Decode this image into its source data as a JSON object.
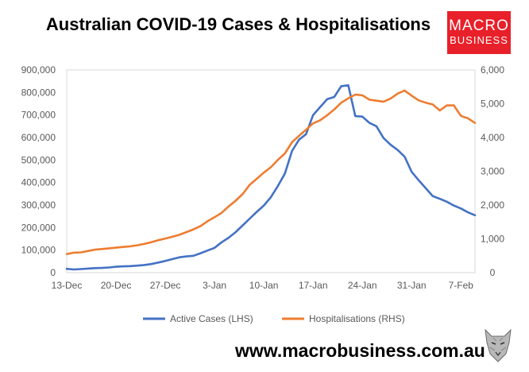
{
  "header": {
    "title": "Australian COVID-19 Cases & Hospitalisations"
  },
  "logo": {
    "line1": "MACRO",
    "line2": "BUSINESS",
    "bg_color": "#e8202a"
  },
  "footer": {
    "website": "www.macrobusiness.com.au"
  },
  "chart_data": {
    "type": "line",
    "title": "Australian COVID-19 Cases & Hospitalisations",
    "categories": [
      "13-Dec",
      "20-Dec",
      "27-Dec",
      "3-Jan",
      "10-Jan",
      "17-Jan",
      "24-Jan",
      "31-Jan",
      "7-Feb"
    ],
    "x_range_days": [
      0,
      58
    ],
    "y_left": {
      "min": 0,
      "max": 900000,
      "ticks": [
        "0",
        "100,000",
        "200,000",
        "300,000",
        "400,000",
        "500,000",
        "600,000",
        "700,000",
        "800,000",
        "900,000"
      ]
    },
    "y_right": {
      "min": 0,
      "max": 6000,
      "ticks": [
        "0",
        "1,000",
        "2,000",
        "3,000",
        "4,000",
        "5,000",
        "6,000"
      ]
    },
    "series": [
      {
        "name": "Active Cases (LHS)",
        "axis": "left",
        "color": "#4472c4",
        "x": [
          0,
          1,
          2,
          3,
          4,
          5,
          6,
          7,
          8,
          9,
          10,
          11,
          12,
          13,
          14,
          15,
          16,
          17,
          18,
          19,
          20,
          21,
          22,
          23,
          24,
          25,
          26,
          27,
          28,
          29,
          30,
          31,
          32,
          33,
          34,
          35,
          36,
          37,
          38,
          39,
          40,
          41,
          42,
          43,
          44,
          45,
          46,
          47,
          48,
          49,
          50,
          51,
          52,
          53,
          54,
          55,
          56,
          57,
          58
        ],
        "values": [
          17000,
          14000,
          16000,
          18000,
          20000,
          21000,
          23000,
          26000,
          28000,
          29000,
          31000,
          34000,
          38000,
          45000,
          52000,
          60000,
          68000,
          72000,
          75000,
          86000,
          98000,
          110000,
          135000,
          155000,
          180000,
          210000,
          240000,
          270000,
          298000,
          335000,
          385000,
          440000,
          540000,
          590000,
          615000,
          700000,
          735000,
          770000,
          780000,
          828000,
          832000,
          695000,
          693000,
          665000,
          650000,
          598000,
          568000,
          545000,
          515000,
          448000,
          410000,
          375000,
          340000,
          328000,
          315000,
          298000,
          285000,
          268000,
          255000
        ]
      },
      {
        "name": "Hospitalisations (RHS)",
        "axis": "right",
        "color": "#ed7d31",
        "x": [
          0,
          1,
          2,
          3,
          4,
          5,
          6,
          7,
          8,
          9,
          10,
          11,
          12,
          13,
          14,
          15,
          16,
          17,
          18,
          19,
          20,
          21,
          22,
          23,
          24,
          25,
          26,
          27,
          28,
          29,
          30,
          31,
          32,
          33,
          34,
          35,
          36,
          37,
          38,
          39,
          40,
          41,
          42,
          43,
          44,
          45,
          46,
          47,
          48,
          49,
          50,
          51,
          52,
          53,
          54,
          55,
          56,
          57,
          58
        ],
        "values": [
          550,
          590,
          600,
          640,
          680,
          700,
          720,
          740,
          760,
          780,
          810,
          850,
          900,
          960,
          1010,
          1060,
          1120,
          1200,
          1280,
          1380,
          1520,
          1640,
          1770,
          1960,
          2130,
          2330,
          2600,
          2780,
          2960,
          3120,
          3340,
          3530,
          3860,
          4050,
          4230,
          4420,
          4510,
          4660,
          4830,
          5030,
          5160,
          5270,
          5250,
          5120,
          5090,
          5060,
          5150,
          5300,
          5390,
          5240,
          5100,
          5030,
          4980,
          4800,
          4950,
          4950,
          4640,
          4570,
          4430
        ]
      }
    ],
    "legend_position": "bottom"
  }
}
